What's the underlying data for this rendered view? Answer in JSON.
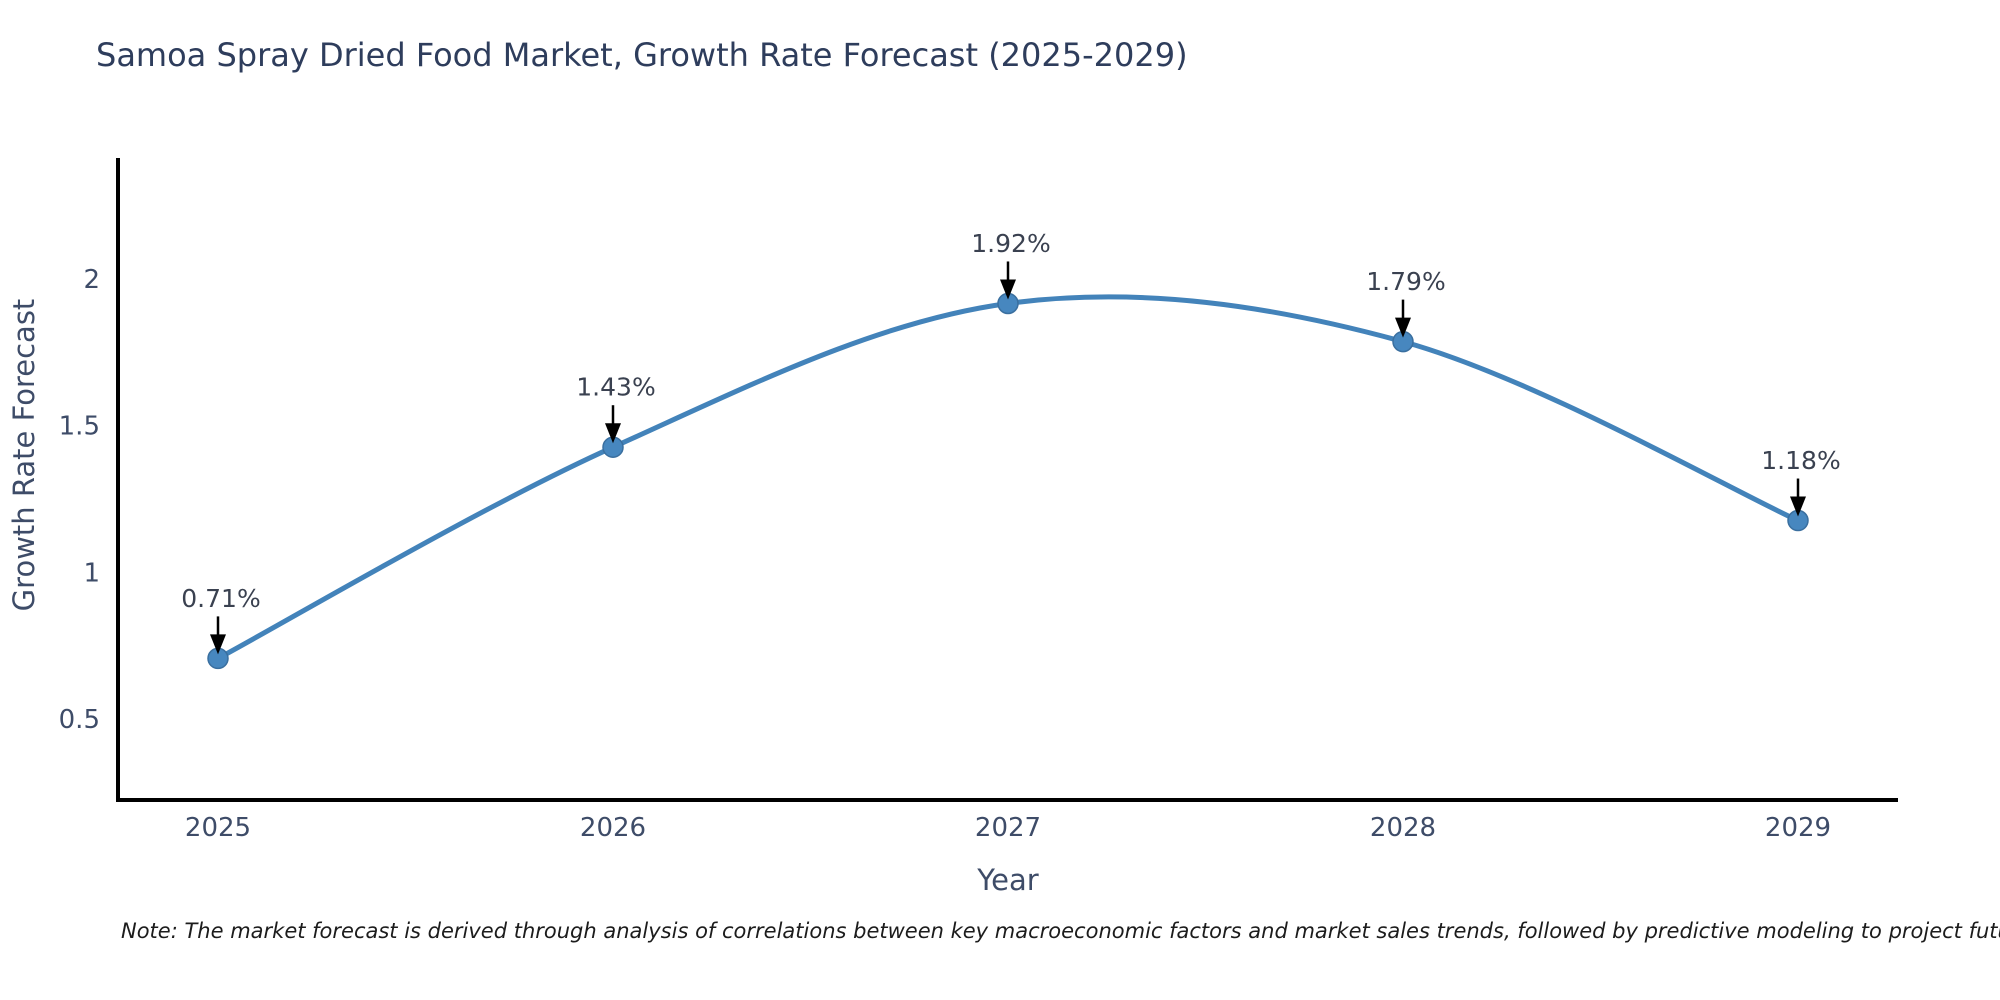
{
  "figure": {
    "background": "#ffffff"
  },
  "chart_data": {
    "type": "line",
    "title": "Samoa Spray Dried Food Market, Growth Rate Forecast (2025-2029)",
    "xlabel": "Year",
    "ylabel": "Growth Rate Forecast",
    "x": [
      2025,
      2026,
      2027,
      2028,
      2029
    ],
    "series": [
      {
        "name": "Growth Rate Forecast",
        "values": [
          0.71,
          1.43,
          1.92,
          1.79,
          1.18
        ]
      }
    ],
    "point_labels": [
      "0.71%",
      "1.43%",
      "1.92%",
      "1.79%",
      "1.18%"
    ],
    "xticks": [
      "2025",
      "2026",
      "2027",
      "2028",
      "2029"
    ],
    "yticks": [
      "0.5",
      "1",
      "1.5",
      "2"
    ],
    "ytick_values": [
      0.5,
      1,
      1.5,
      2
    ],
    "ylim": [
      0.23,
      2.42
    ],
    "xlim": [
      2024.75,
      2029.25
    ],
    "grid": false,
    "legend": "none",
    "line_color": "#4383ba",
    "marker_color": "#4787bf",
    "marker_edge_color": "#3a6f9f",
    "annotation_arrow_color": "#000000",
    "axis_color": "#000000",
    "title_color": "#2e3d5c",
    "tick_label_color": "#3e4c68",
    "annotation_text_color": "#3a4150"
  },
  "note": "Note: The market forecast is derived through analysis of correlations between key macroeconomic factors and market sales trends, followed by predictive modeling to project future sales"
}
